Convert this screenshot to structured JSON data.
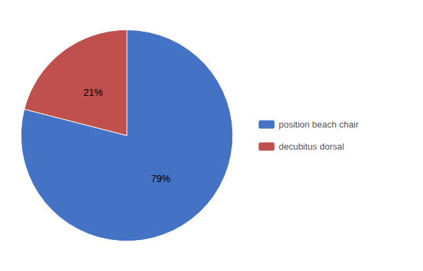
{
  "chart_data": {
    "type": "pie",
    "categories": [
      "position beach chair",
      "decubitus dorsal"
    ],
    "values": [
      79,
      21
    ],
    "value_labels": [
      "79%",
      "21%"
    ],
    "colors": [
      "#4472C4",
      "#C0504D"
    ],
    "data_labels": true,
    "legend": "right"
  }
}
